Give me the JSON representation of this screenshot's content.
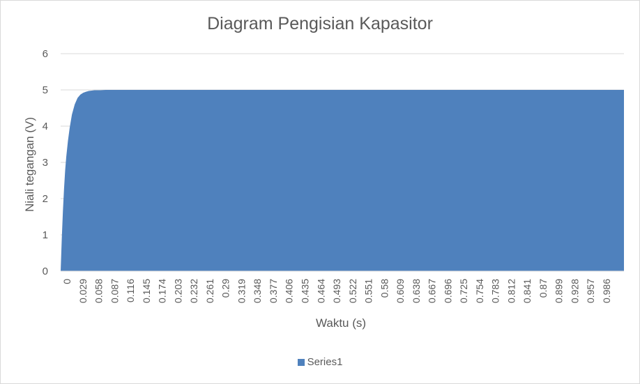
{
  "chart_data": {
    "type": "area",
    "title": "Diagram Pengisian Kapasitor",
    "xlabel": "Waktu (s)",
    "ylabel": "Niali tegangan (V)",
    "ylim": [
      0,
      6
    ],
    "yticks": [
      "0",
      "1",
      "2",
      "3",
      "4",
      "5",
      "6"
    ],
    "xtick_labels": [
      "0",
      "0.029",
      "0.058",
      "0.087",
      "0.116",
      "0.145",
      "0.174",
      "0.203",
      "0.232",
      "0.261",
      "0.29",
      "0.319",
      "0.348",
      "0.377",
      "0.406",
      "0.435",
      "0.464",
      "0.493",
      "0.522",
      "0.551",
      "0.58",
      "0.609",
      "0.638",
      "0.667",
      "0.696",
      "0.725",
      "0.754",
      "0.783",
      "0.812",
      "0.841",
      "0.87",
      "0.899",
      "0.928",
      "0.957",
      "0.986"
    ],
    "x_range": [
      0,
      1.0
    ],
    "grid": "horizontal",
    "legend_position": "bottom",
    "series": [
      {
        "name": "Series1",
        "color": "#4f81bd",
        "x": [
          0,
          0.002,
          0.004,
          0.006,
          0.008,
          0.01,
          0.013,
          0.016,
          0.02,
          0.025,
          0.03,
          0.035,
          0.04,
          0.045,
          0.05,
          0.06,
          0.07,
          0.08,
          0.09,
          0.1,
          0.2,
          0.3,
          0.4,
          0.5,
          0.6,
          0.7,
          0.8,
          0.9,
          1.0
        ],
        "values": [
          0,
          0.9,
          1.65,
          2.27,
          2.78,
          3.16,
          3.6,
          3.95,
          4.32,
          4.6,
          4.78,
          4.87,
          4.92,
          4.95,
          4.97,
          4.99,
          4.99,
          5.0,
          5.0,
          5.0,
          5.0,
          5.0,
          5.0,
          5.0,
          5.0,
          5.0,
          5.0,
          5.0,
          5.0
        ]
      }
    ]
  }
}
